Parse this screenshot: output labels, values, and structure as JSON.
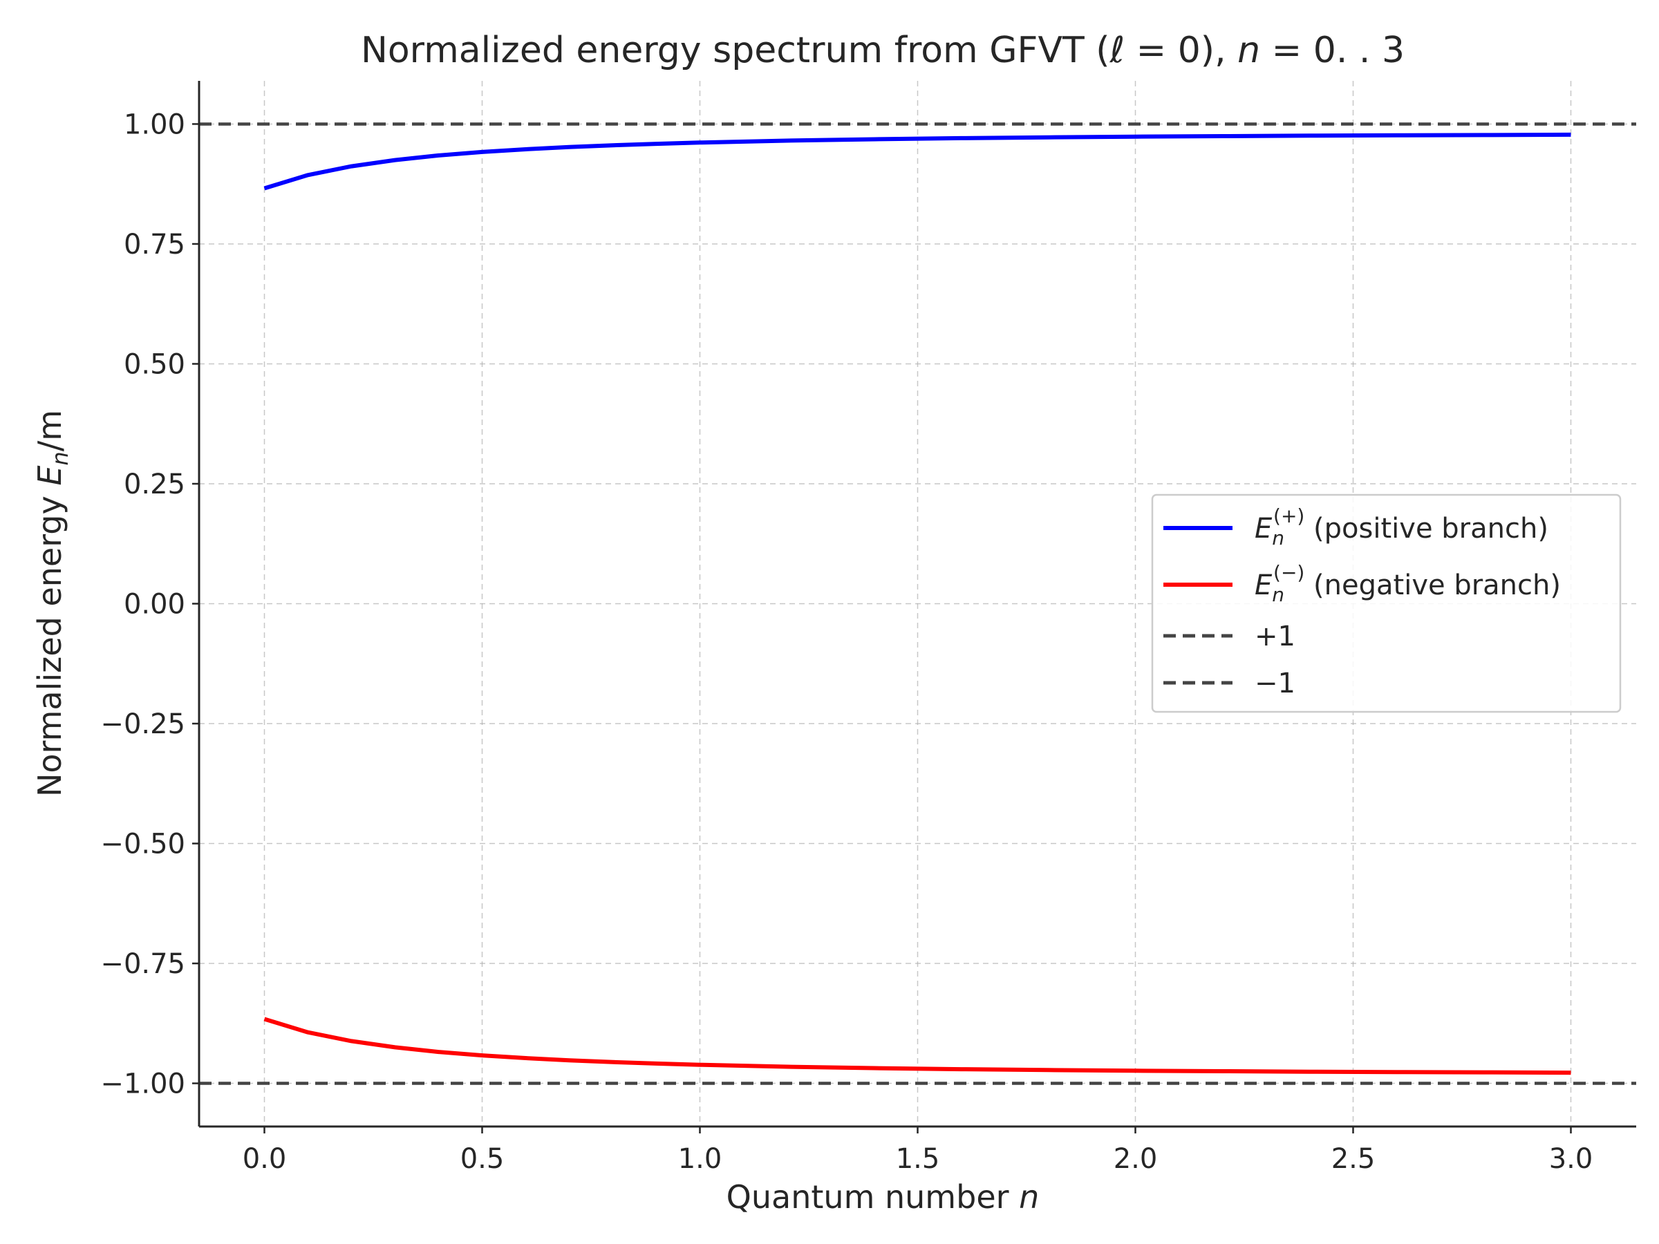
{
  "chart_data": {
    "type": "line",
    "title": "Normalized energy spectrum from GFVT (ℓ = 0), n = 0. . 3",
    "title_parts": {
      "prefix": "Normalized energy spectrum from GFVT (",
      "ell": "ℓ",
      "eq1": " = 0), ",
      "n": "n",
      "suffix": " = 0. . 3"
    },
    "xlabel": "Quantum number n",
    "xlabel_parts": {
      "text": "Quantum number ",
      "var": "n"
    },
    "ylabel": "Normalized energy E_n/m",
    "ylabel_parts": {
      "text": "Normalized energy ",
      "var": "E",
      "sub": "n",
      "tail": "/m"
    },
    "xlim": [
      -0.15,
      3.15
    ],
    "ylim": [
      -1.09,
      1.09
    ],
    "x_ticks": [
      0.0,
      0.5,
      1.0,
      1.5,
      2.0,
      2.5,
      3.0
    ],
    "x_tick_labels": [
      "0.0",
      "0.5",
      "1.0",
      "1.5",
      "2.0",
      "2.5",
      "3.0"
    ],
    "y_ticks": [
      1.0,
      0.75,
      0.5,
      0.25,
      0.0,
      -0.25,
      -0.5,
      -0.75,
      -1.0
    ],
    "y_tick_labels": [
      "1.00",
      "0.75",
      "0.50",
      "0.25",
      "0.00",
      "−0.25",
      "−0.50",
      "−0.75",
      "−1.00"
    ],
    "grid": true,
    "legend_position": "center-right",
    "x": [
      0.0,
      0.1,
      0.2,
      0.3,
      0.4,
      0.5,
      0.6,
      0.7,
      0.8,
      0.9,
      1.0,
      1.2,
      1.4,
      1.6,
      1.8,
      2.0,
      2.2,
      2.4,
      2.6,
      2.8,
      3.0
    ],
    "series": [
      {
        "name": "E_n^(+) (positive branch)",
        "legend_var": "E",
        "legend_sub": "n",
        "legend_sup": "(+)",
        "legend_tail": " (positive branch)",
        "color": "#0000ff",
        "style": "solid",
        "values": [
          0.866,
          0.8936,
          0.9119,
          0.9249,
          0.9345,
          0.9417,
          0.9474,
          0.952,
          0.9557,
          0.9588,
          0.9614,
          0.9654,
          0.9683,
          0.9706,
          0.9723,
          0.9737,
          0.9748,
          0.9757,
          0.9765,
          0.9771,
          0.9777
        ]
      },
      {
        "name": "E_n^(−) (negative branch)",
        "legend_var": "E",
        "legend_sub": "n",
        "legend_sup": "(−)",
        "legend_tail": " (negative branch)",
        "color": "#ff0000",
        "style": "solid",
        "values": [
          -0.866,
          -0.8936,
          -0.9119,
          -0.9249,
          -0.9345,
          -0.9417,
          -0.9474,
          -0.952,
          -0.9557,
          -0.9588,
          -0.9614,
          -0.9654,
          -0.9683,
          -0.9706,
          -0.9723,
          -0.9737,
          -0.9748,
          -0.9757,
          -0.9765,
          -0.9771,
          -0.9777
        ]
      }
    ],
    "reference_lines": [
      {
        "name": "+1",
        "y": 1.0,
        "color": "#444444",
        "style": "dashed"
      },
      {
        "name": "−1",
        "y": -1.0,
        "color": "#444444",
        "style": "dashed"
      }
    ]
  }
}
